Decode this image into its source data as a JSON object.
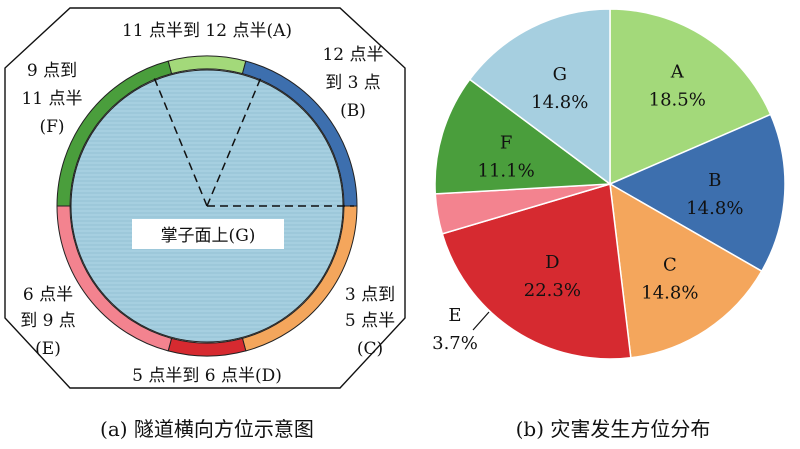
{
  "figure_a": {
    "caption": "(a) 隧道横向方位示意图",
    "zones": [
      {
        "code": "A",
        "lines": [
          "11 点半到 12 点半(A)"
        ],
        "color": "#a3d97a"
      },
      {
        "code": "B",
        "lines": [
          "12 点半",
          "到 3 点",
          "(B)"
        ],
        "color": "#3d6fae"
      },
      {
        "code": "C",
        "lines": [
          "3 点到",
          "5 点半",
          "(C)"
        ],
        "color": "#f4a65c"
      },
      {
        "code": "D",
        "lines": [
          "5 点半到 6 点半(D)"
        ],
        "color": "#d62a30"
      },
      {
        "code": "E",
        "lines": [
          "6 点半",
          "到 9 点",
          "(E)"
        ],
        "color": "#f3838f"
      },
      {
        "code": "F",
        "lines": [
          "9 点到",
          "11 点半",
          "(F)"
        ],
        "color": "#4a9e3c"
      },
      {
        "code": "G",
        "lines": [
          "掌子面上(G)"
        ],
        "color": "#a6cfe0"
      }
    ]
  },
  "chart_data": {
    "type": "pie",
    "title": "(b) 灾害发生方位分布",
    "categories": [
      "A",
      "B",
      "C",
      "D",
      "E",
      "F",
      "G"
    ],
    "values": [
      18.5,
      14.8,
      14.8,
      22.3,
      3.7,
      11.1,
      14.8
    ],
    "value_labels": [
      "18.5%",
      "14.8%",
      "14.8%",
      "22.3%",
      "3.7%",
      "11.1%",
      "14.8%"
    ],
    "colors": [
      "#a3d97a",
      "#3d6fae",
      "#f4a65c",
      "#d62a30",
      "#f3838f",
      "#4a9e3c",
      "#a6cfe0"
    ],
    "start": "12 o'clock",
    "direction": "clockwise"
  }
}
